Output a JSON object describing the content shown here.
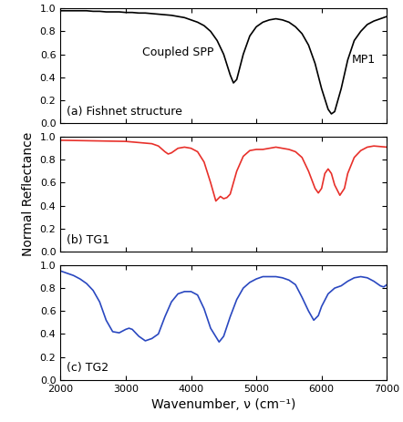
{
  "chart_data": [
    {
      "type": "line",
      "title": "(a) Fishnet structure",
      "color": "#000000",
      "annotations": [
        "Coupled SPP",
        "MP1"
      ],
      "x": [
        2000,
        2100,
        2200,
        2300,
        2400,
        2500,
        2600,
        2700,
        2800,
        2900,
        3000,
        3100,
        3200,
        3300,
        3400,
        3500,
        3600,
        3700,
        3800,
        3900,
        4000,
        4100,
        4200,
        4300,
        4400,
        4500,
        4600,
        4650,
        4700,
        4800,
        4900,
        5000,
        5100,
        5200,
        5300,
        5400,
        5500,
        5600,
        5700,
        5800,
        5900,
        6000,
        6100,
        6150,
        6200,
        6300,
        6400,
        6500,
        6600,
        6700,
        6800,
        6900,
        7000
      ],
      "values": [
        0.98,
        0.98,
        0.98,
        0.98,
        0.98,
        0.975,
        0.975,
        0.97,
        0.97,
        0.97,
        0.965,
        0.965,
        0.96,
        0.96,
        0.955,
        0.95,
        0.945,
        0.94,
        0.93,
        0.92,
        0.9,
        0.88,
        0.85,
        0.8,
        0.72,
        0.6,
        0.42,
        0.35,
        0.38,
        0.6,
        0.76,
        0.84,
        0.88,
        0.9,
        0.91,
        0.9,
        0.88,
        0.84,
        0.78,
        0.68,
        0.52,
        0.3,
        0.12,
        0.08,
        0.1,
        0.3,
        0.55,
        0.72,
        0.8,
        0.86,
        0.89,
        0.91,
        0.93
      ],
      "xlim": [
        2000,
        7000
      ],
      "ylim": [
        0,
        1
      ],
      "xticks": [
        2000,
        3000,
        4000,
        5000,
        6000,
        7000
      ],
      "yticks": [
        {
          "value": 0.0,
          "label": "0.0"
        },
        {
          "value": 0.2,
          "label": "0.2"
        },
        {
          "value": 0.4,
          "label": "0.4"
        },
        {
          "value": 0.6,
          "label": "0.6"
        },
        {
          "value": 0.8,
          "label": "0.8"
        },
        {
          "value": 1.0,
          "label": "1.0"
        }
      ],
      "tick_labels": "y"
    },
    {
      "type": "line",
      "title": "(b) TG1",
      "color": "#e8302a",
      "y_label": "Normal Reflectance",
      "x": [
        2000,
        2500,
        3000,
        3400,
        3500,
        3600,
        3650,
        3700,
        3800,
        3900,
        4000,
        4100,
        4200,
        4300,
        4380,
        4450,
        4500,
        4550,
        4600,
        4700,
        4800,
        4900,
        5000,
        5100,
        5200,
        5300,
        5400,
        5500,
        5600,
        5700,
        5800,
        5900,
        5950,
        6000,
        6050,
        6100,
        6150,
        6200,
        6280,
        6350,
        6400,
        6500,
        6600,
        6700,
        6800,
        6900,
        7000
      ],
      "values": [
        0.97,
        0.965,
        0.96,
        0.94,
        0.92,
        0.87,
        0.85,
        0.86,
        0.9,
        0.91,
        0.9,
        0.87,
        0.78,
        0.6,
        0.44,
        0.48,
        0.46,
        0.47,
        0.5,
        0.7,
        0.83,
        0.88,
        0.89,
        0.89,
        0.9,
        0.91,
        0.9,
        0.89,
        0.87,
        0.82,
        0.7,
        0.55,
        0.51,
        0.55,
        0.68,
        0.72,
        0.68,
        0.58,
        0.49,
        0.55,
        0.68,
        0.82,
        0.88,
        0.91,
        0.92,
        0.915,
        0.91
      ],
      "xlim": [
        2000,
        7000
      ],
      "ylim": [
        0,
        1
      ],
      "xticks": [
        2000,
        3000,
        4000,
        5000,
        6000,
        7000
      ],
      "yticks": [
        {
          "value": 0.0,
          "label": "0.0"
        },
        {
          "value": 0.2,
          "label": "0.2"
        },
        {
          "value": 0.4,
          "label": "0.4"
        },
        {
          "value": 0.6,
          "label": "0.6"
        },
        {
          "value": 0.8,
          "label": "0.8"
        },
        {
          "value": 1.0,
          "label": "1.0"
        }
      ],
      "tick_labels": "y"
    },
    {
      "type": "line",
      "title": "(c) TG2",
      "color": "#2a48c0",
      "x_label": "Wavenumber, ν (cm⁻¹)",
      "x": [
        2000,
        2100,
        2200,
        2300,
        2400,
        2500,
        2600,
        2700,
        2800,
        2900,
        3000,
        3050,
        3100,
        3200,
        3300,
        3400,
        3500,
        3600,
        3700,
        3800,
        3900,
        4000,
        4100,
        4200,
        4300,
        4430,
        4500,
        4600,
        4700,
        4800,
        4900,
        5000,
        5100,
        5200,
        5300,
        5400,
        5500,
        5600,
        5700,
        5800,
        5880,
        5950,
        6000,
        6100,
        6200,
        6300,
        6400,
        6500,
        6600,
        6700,
        6800,
        6900,
        6950,
        7000
      ],
      "values": [
        0.95,
        0.93,
        0.91,
        0.88,
        0.84,
        0.78,
        0.68,
        0.52,
        0.42,
        0.41,
        0.44,
        0.45,
        0.44,
        0.38,
        0.34,
        0.36,
        0.4,
        0.55,
        0.68,
        0.75,
        0.77,
        0.77,
        0.74,
        0.62,
        0.45,
        0.33,
        0.38,
        0.55,
        0.7,
        0.8,
        0.85,
        0.88,
        0.9,
        0.9,
        0.9,
        0.89,
        0.87,
        0.83,
        0.72,
        0.6,
        0.52,
        0.56,
        0.64,
        0.75,
        0.8,
        0.82,
        0.86,
        0.89,
        0.9,
        0.89,
        0.86,
        0.82,
        0.81,
        0.83
      ],
      "xlim": [
        2000,
        7000
      ],
      "ylim": [
        0,
        1
      ],
      "xticks": [
        2000,
        3000,
        4000,
        5000,
        6000,
        7000
      ],
      "yticks": [
        {
          "value": 0.0,
          "label": "0.0"
        },
        {
          "value": 0.2,
          "label": "0.2"
        },
        {
          "value": 0.4,
          "label": "0.4"
        },
        {
          "value": 0.6,
          "label": "0.6"
        },
        {
          "value": 0.8,
          "label": "0.8"
        },
        {
          "value": 1.0,
          "label": "1.0"
        }
      ]
    }
  ]
}
